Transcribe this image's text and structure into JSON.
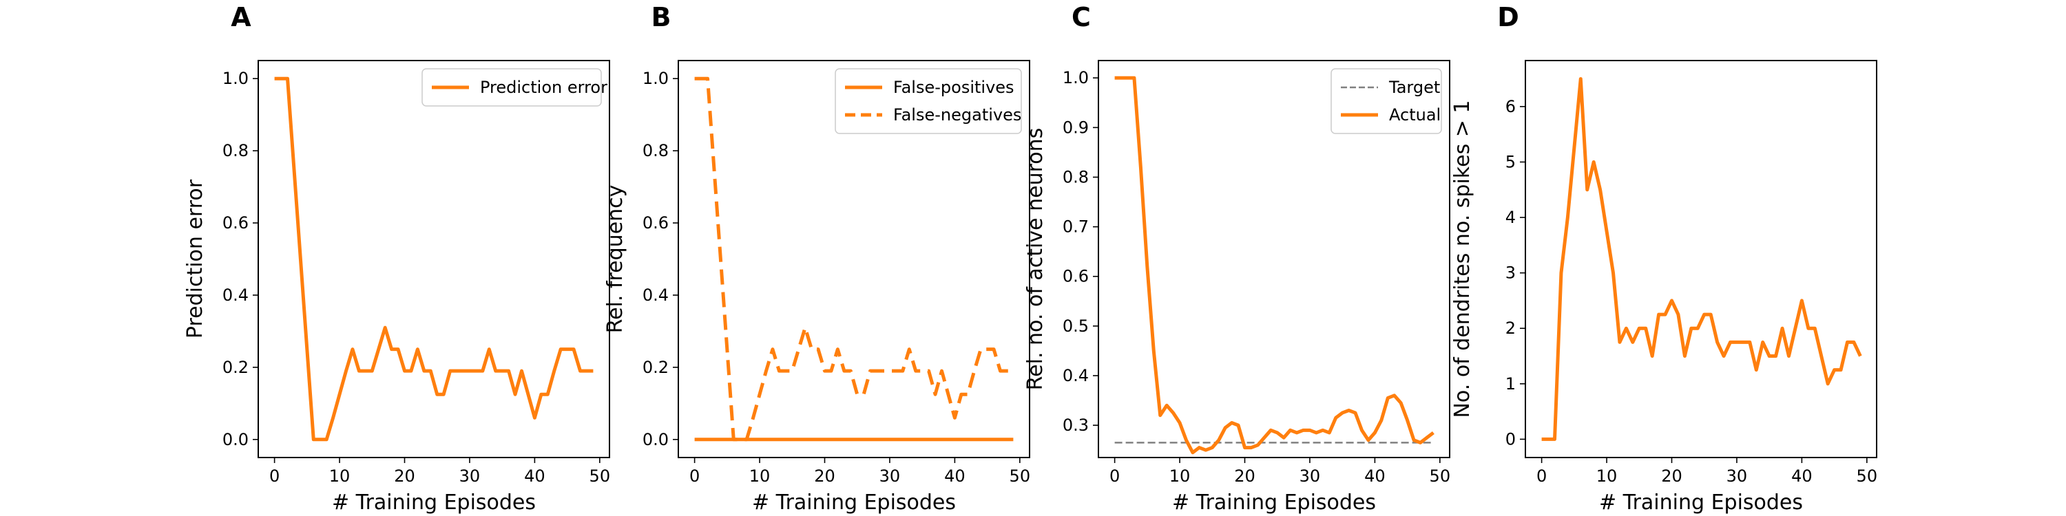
{
  "colors": {
    "line": "#ff7f0e",
    "target": "#808080",
    "axis": "#000000",
    "legend_border": "#cccccc"
  },
  "chart_data": [
    {
      "type": "line",
      "panel": "A",
      "xlabel": "# Training Episodes",
      "ylabel": "Prediction error",
      "xlim": [
        -2.5,
        51.5
      ],
      "ylim": [
        -0.05,
        1.05
      ],
      "xticks": [
        0,
        10,
        20,
        30,
        40,
        50
      ],
      "yticks": [
        0.0,
        0.2,
        0.4,
        0.6,
        0.8,
        1.0
      ],
      "ytick_decimals": 1,
      "legend_position": "top-right",
      "grid": false,
      "series": [
        {
          "name": "Prediction error",
          "style": "solid",
          "x": [
            0,
            1,
            2,
            3,
            4,
            5,
            6,
            7,
            8,
            9,
            10,
            11,
            12,
            13,
            14,
            15,
            16,
            17,
            18,
            19,
            20,
            21,
            22,
            23,
            24,
            25,
            26,
            27,
            28,
            29,
            30,
            31,
            32,
            33,
            34,
            35,
            36,
            37,
            38,
            39,
            40,
            41,
            42,
            43,
            44,
            45,
            46,
            47,
            48,
            49
          ],
          "y": [
            1.0,
            1.0,
            1.0,
            0.75,
            0.5,
            0.25,
            0.0,
            0.0,
            0.0,
            0.06,
            0.125,
            0.19,
            0.25,
            0.19,
            0.19,
            0.19,
            0.25,
            0.31,
            0.25,
            0.25,
            0.19,
            0.19,
            0.25,
            0.19,
            0.19,
            0.125,
            0.125,
            0.19,
            0.19,
            0.19,
            0.19,
            0.19,
            0.19,
            0.25,
            0.19,
            0.19,
            0.19,
            0.125,
            0.19,
            0.125,
            0.06,
            0.125,
            0.125,
            0.19,
            0.25,
            0.25,
            0.25,
            0.19,
            0.19,
            0.19
          ]
        }
      ]
    },
    {
      "type": "line",
      "panel": "B",
      "xlabel": "# Training Episodes",
      "ylabel": "Rel. frequency",
      "xlim": [
        -2.5,
        51.5
      ],
      "ylim": [
        -0.05,
        1.05
      ],
      "xticks": [
        0,
        10,
        20,
        30,
        40,
        50
      ],
      "yticks": [
        0.0,
        0.2,
        0.4,
        0.6,
        0.8,
        1.0
      ],
      "ytick_decimals": 1,
      "legend_position": "top-right",
      "grid": false,
      "series": [
        {
          "name": "False-positives",
          "style": "solid",
          "x": [
            0,
            49
          ],
          "y": [
            0.0,
            0.0
          ]
        },
        {
          "name": "False-negatives",
          "style": "dashed",
          "x": [
            0,
            1,
            2,
            3,
            4,
            5,
            6,
            7,
            8,
            9,
            10,
            11,
            12,
            13,
            14,
            15,
            16,
            17,
            18,
            19,
            20,
            21,
            22,
            23,
            24,
            25,
            26,
            27,
            28,
            29,
            30,
            31,
            32,
            33,
            34,
            35,
            36,
            37,
            38,
            39,
            40,
            41,
            42,
            43,
            44,
            45,
            46,
            47,
            48,
            49
          ],
          "y": [
            1.0,
            1.0,
            1.0,
            0.75,
            0.5,
            0.25,
            0.0,
            0.0,
            0.0,
            0.06,
            0.125,
            0.19,
            0.25,
            0.19,
            0.19,
            0.19,
            0.25,
            0.31,
            0.25,
            0.25,
            0.19,
            0.19,
            0.25,
            0.19,
            0.19,
            0.125,
            0.125,
            0.19,
            0.19,
            0.19,
            0.19,
            0.19,
            0.19,
            0.25,
            0.19,
            0.19,
            0.19,
            0.125,
            0.19,
            0.125,
            0.06,
            0.125,
            0.125,
            0.19,
            0.25,
            0.25,
            0.25,
            0.19,
            0.19,
            0.19
          ]
        }
      ]
    },
    {
      "type": "line",
      "panel": "C",
      "xlabel": "# Training Episodes",
      "ylabel": "Rel. no. of active neurons",
      "xlim": [
        -2.5,
        51.5
      ],
      "ylim": [
        0.235,
        1.035
      ],
      "xticks": [
        0,
        10,
        20,
        30,
        40,
        50
      ],
      "yticks": [
        0.3,
        0.4,
        0.5,
        0.6,
        0.7,
        0.8,
        0.9,
        1.0
      ],
      "ytick_decimals": 1,
      "legend_position": "top-right",
      "grid": false,
      "series": [
        {
          "name": "Target",
          "style": "dashed-thin",
          "x": [
            0,
            49
          ],
          "y": [
            0.265,
            0.265
          ]
        },
        {
          "name": "Actual",
          "style": "solid",
          "x": [
            0,
            1,
            2,
            3,
            4,
            5,
            6,
            7,
            8,
            9,
            10,
            11,
            12,
            13,
            14,
            15,
            16,
            17,
            18,
            19,
            20,
            21,
            22,
            23,
            24,
            25,
            26,
            27,
            28,
            29,
            30,
            31,
            32,
            33,
            34,
            35,
            36,
            37,
            38,
            39,
            40,
            41,
            42,
            43,
            44,
            45,
            46,
            47,
            48,
            49
          ],
          "y": [
            1.0,
            1.0,
            1.0,
            1.0,
            0.82,
            0.62,
            0.45,
            0.32,
            0.34,
            0.325,
            0.305,
            0.27,
            0.245,
            0.255,
            0.25,
            0.255,
            0.27,
            0.295,
            0.305,
            0.3,
            0.255,
            0.255,
            0.26,
            0.275,
            0.29,
            0.285,
            0.275,
            0.29,
            0.285,
            0.29,
            0.29,
            0.285,
            0.29,
            0.285,
            0.315,
            0.325,
            0.33,
            0.325,
            0.29,
            0.27,
            0.285,
            0.31,
            0.355,
            0.36,
            0.345,
            0.31,
            0.27,
            0.265,
            0.275,
            0.285
          ]
        }
      ]
    },
    {
      "type": "line",
      "panel": "D",
      "xlabel": "# Training Episodes",
      "ylabel": "No. of dendrites no. spikes > 1",
      "xlim": [
        -2.5,
        51.5
      ],
      "ylim": [
        -0.33,
        6.83
      ],
      "xticks": [
        0,
        10,
        20,
        30,
        40,
        50
      ],
      "yticks": [
        0,
        1,
        2,
        3,
        4,
        5,
        6
      ],
      "ytick_decimals": 0,
      "legend_position": "none",
      "grid": false,
      "series": [
        {
          "style": "solid",
          "x": [
            0,
            1,
            2,
            3,
            4,
            5,
            6,
            7,
            8,
            9,
            10,
            11,
            12,
            13,
            14,
            15,
            16,
            17,
            18,
            19,
            20,
            21,
            22,
            23,
            24,
            25,
            26,
            27,
            28,
            29,
            30,
            31,
            32,
            33,
            34,
            35,
            36,
            37,
            38,
            39,
            40,
            41,
            42,
            43,
            44,
            45,
            46,
            47,
            48,
            49
          ],
          "y": [
            0,
            0,
            0,
            3.0,
            4.0,
            5.25,
            6.5,
            4.5,
            5.0,
            4.5,
            3.75,
            3.0,
            1.75,
            2.0,
            1.75,
            2.0,
            2.0,
            1.5,
            2.25,
            2.25,
            2.5,
            2.25,
            1.5,
            2.0,
            2.0,
            2.25,
            2.25,
            1.75,
            1.5,
            1.75,
            1.75,
            1.75,
            1.75,
            1.25,
            1.75,
            1.5,
            1.5,
            2.0,
            1.5,
            2.0,
            2.5,
            2.0,
            2.0,
            1.5,
            1.0,
            1.25,
            1.25,
            1.75,
            1.75,
            1.5
          ]
        }
      ]
    }
  ]
}
